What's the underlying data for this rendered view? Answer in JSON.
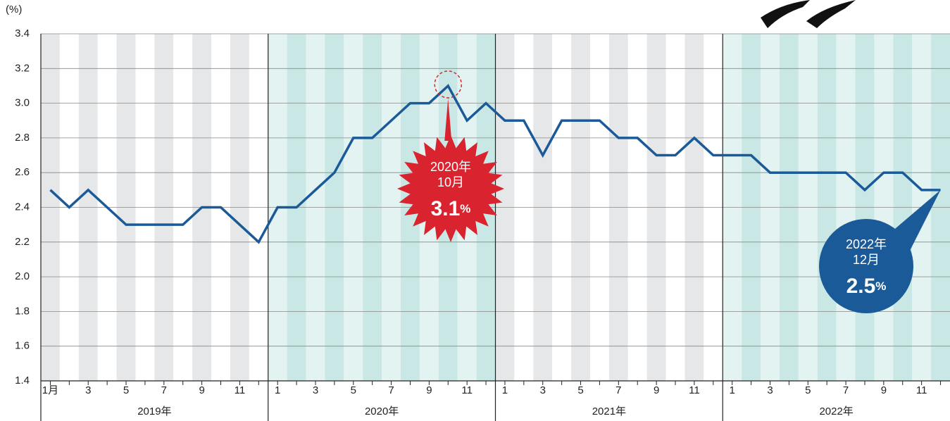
{
  "chart_data": {
    "type": "line",
    "y_label": "(%)",
    "categories": [
      "1月",
      null,
      "3",
      null,
      "5",
      null,
      "7",
      null,
      "9",
      null,
      "11",
      null,
      "1",
      null,
      "3",
      null,
      "5",
      null,
      "7",
      null,
      "9",
      null,
      "11",
      null,
      "1",
      null,
      "3",
      null,
      "5",
      null,
      "7",
      null,
      "9",
      null,
      "11",
      null,
      "1",
      null,
      "3",
      null,
      "5",
      null,
      "7",
      null,
      "9",
      null,
      "11",
      null
    ],
    "groups": [
      "2019年",
      "2020年",
      "2021年",
      "2022年"
    ],
    "series": [
      {
        "name": null,
        "color": "#1b5a98",
        "values": [
          2.5,
          2.4,
          2.5,
          2.4,
          2.3,
          2.3,
          2.3,
          2.3,
          2.4,
          2.4,
          2.3,
          2.2,
          2.4,
          2.4,
          2.5,
          2.6,
          2.8,
          2.8,
          2.9,
          3.0,
          3.0,
          3.1,
          2.9,
          3.0,
          2.9,
          2.9,
          2.7,
          2.9,
          2.9,
          2.9,
          2.8,
          2.8,
          2.7,
          2.7,
          2.8,
          2.7,
          2.7,
          2.7,
          2.6,
          2.6,
          2.6,
          2.6,
          2.6,
          2.5,
          2.6,
          2.6,
          2.5,
          2.5
        ]
      }
    ],
    "ylim": [
      1.4,
      3.4
    ],
    "yticks": [
      1.4,
      1.6,
      1.8,
      {
        "value": 2,
        "label": "2.0"
      },
      2.2,
      2.4,
      2.6,
      2.8,
      {
        "value": 3,
        "label": "3.0"
      },
      3.2,
      3.4
    ],
    "grid": true,
    "annotations": [
      {
        "lines": [
          "2020年",
          "10月"
        ],
        "value_label": "3.1",
        "unit": "%",
        "color": "#d9232e"
      },
      {
        "lines": [
          "2022年",
          "12月"
        ],
        "value_label": "2.5",
        "unit": "%",
        "color": "#1b5a98"
      }
    ]
  }
}
